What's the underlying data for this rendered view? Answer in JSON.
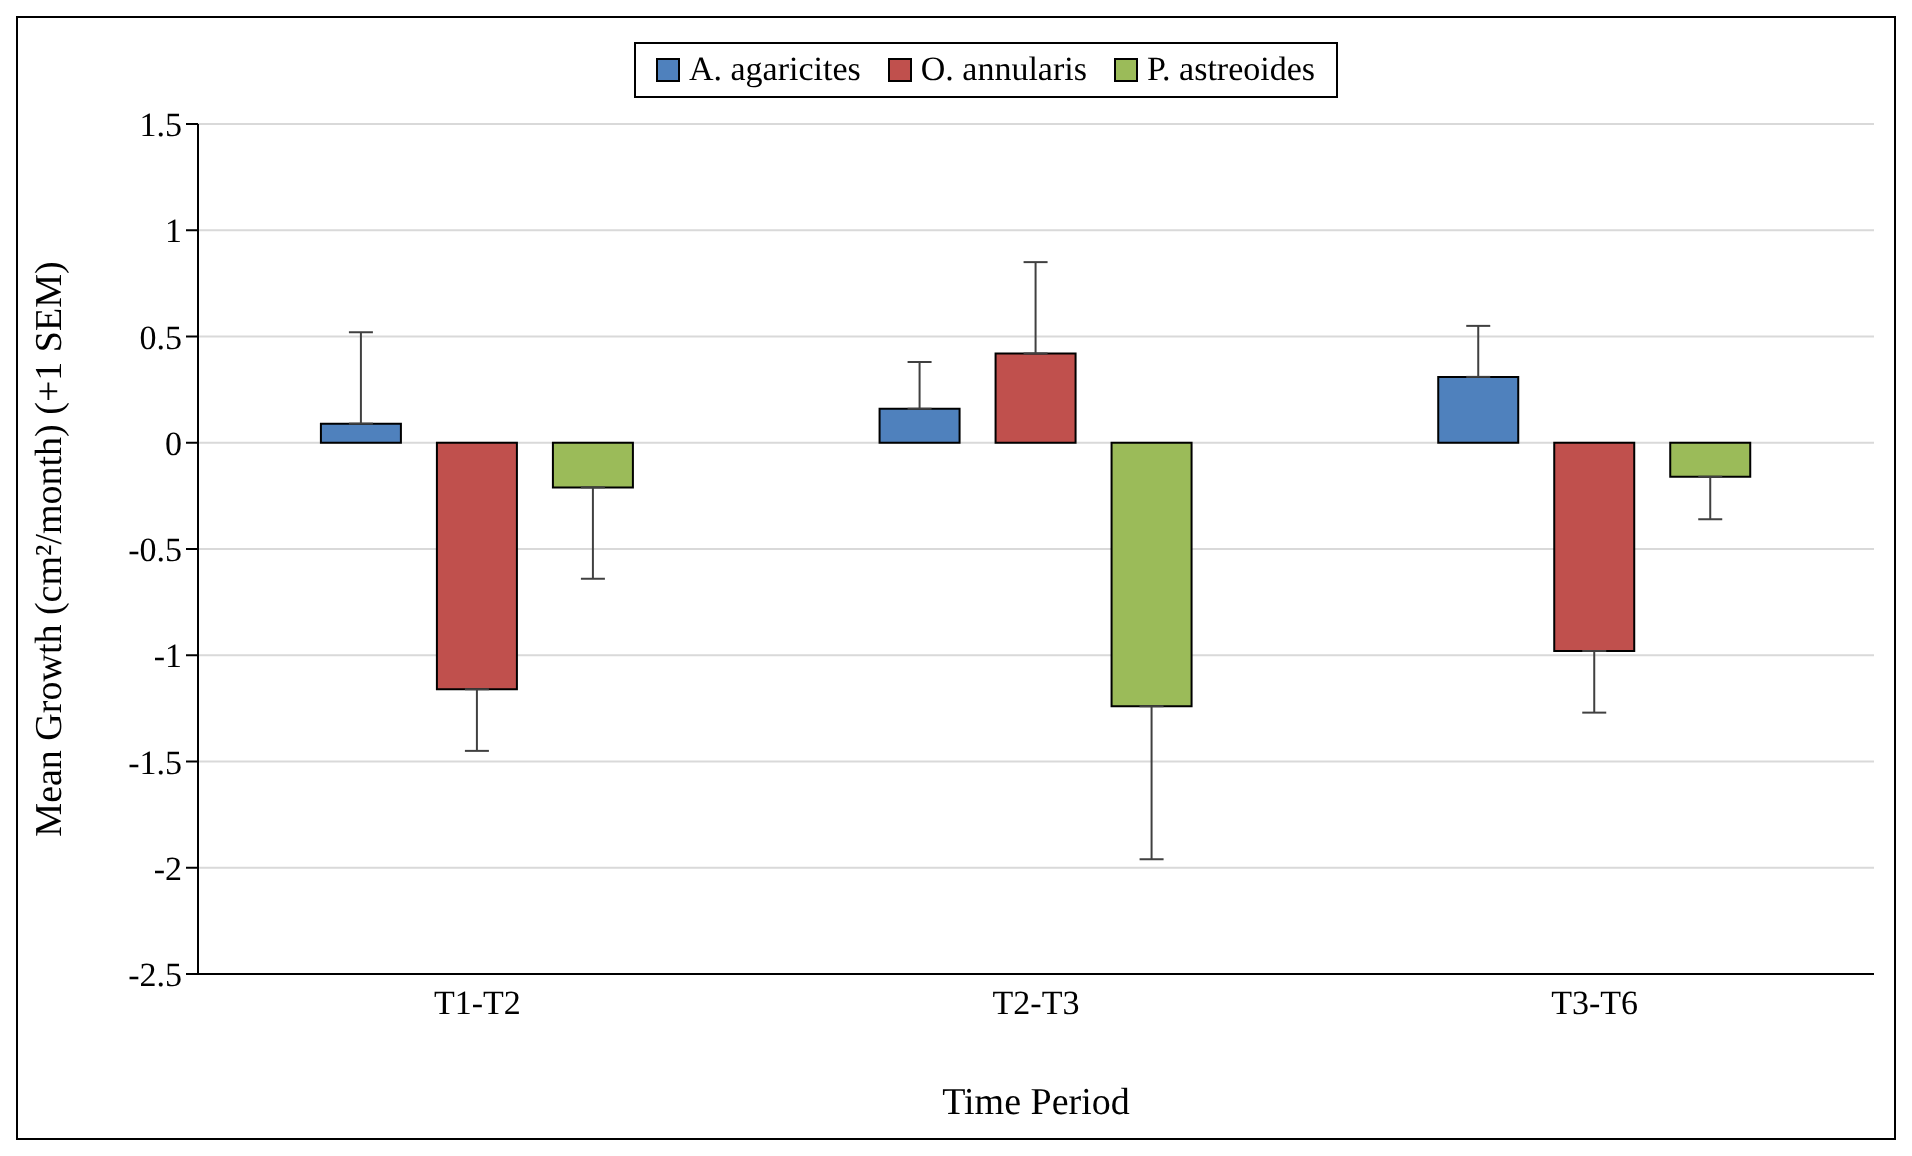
{
  "chart_data": {
    "type": "bar",
    "xlabel": "Time Period",
    "ylabel": "Mean Growth (cm²/month) (+1 SEM)",
    "categories": [
      "T1-T2",
      "T2-T3",
      "T3-T6"
    ],
    "series": [
      {
        "name": "A. agaricites",
        "color": "#4f81bd",
        "values": [
          0.09,
          0.16,
          0.31
        ],
        "errors": [
          [
            0.09,
            0.52
          ],
          [
            0.16,
            0.38
          ],
          [
            0.31,
            0.55
          ]
        ]
      },
      {
        "name": "O. annularis",
        "color": "#c0504d",
        "values": [
          -1.16,
          0.42,
          -0.98
        ],
        "errors": [
          [
            -1.45,
            -1.16
          ],
          [
            0.42,
            0.85
          ],
          [
            -1.27,
            -0.98
          ]
        ]
      },
      {
        "name": "P. astreoides",
        "color": "#9bbb59",
        "values": [
          -0.21,
          -1.24,
          -0.16
        ],
        "errors": [
          [
            -0.64,
            -0.21
          ],
          [
            -1.96,
            -1.24
          ],
          [
            -0.36,
            -0.16
          ]
        ]
      }
    ],
    "ylim": [
      -2.5,
      1.5
    ],
    "yticks": [
      -2.5,
      -2,
      -1.5,
      -1,
      -0.5,
      0,
      0.5,
      1,
      1.5
    ],
    "grid": "y",
    "legend": "top"
  }
}
